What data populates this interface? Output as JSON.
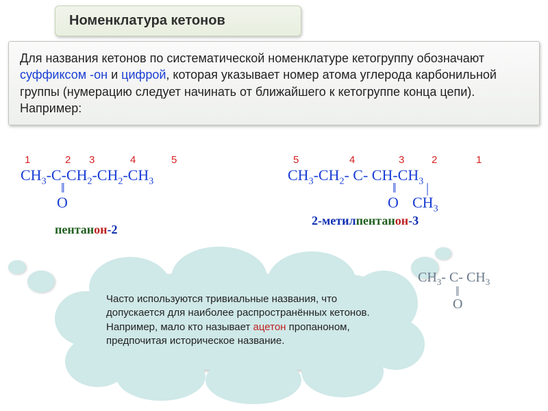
{
  "title": "Номенклатура кетонов",
  "description": {
    "part1": "Для названия кетонов по систематической номенклатуре кетогруппу обозначают ",
    "suffix": "суффиксом -он",
    "and": " и ",
    "digit": "цифрой",
    "part2": ", которая указывает номер атома углерода карбонильной группы (нумерацию следует начинать от ближайшего к кетогруппе конца цепи). Например:"
  },
  "formula1": {
    "nums": [
      "1",
      "2",
      "3",
      "4",
      "5"
    ],
    "num_positions": [
      6,
      65,
      100,
      160,
      220
    ],
    "line": "CH₃-C-CH₂-CH₂-CH₃",
    "dbond": "‖",
    "oxygen": "O",
    "name_pref": "пентан",
    "name_suf": "он",
    "name_num": "-2"
  },
  "formula2": {
    "nums": [
      "5",
      "4",
      "3",
      "2",
      "1"
    ],
    "num_positions": [
      8,
      90,
      162,
      210,
      275
    ],
    "line": "CH₃-CH₂- C- CH-CH₃",
    "dbond": "‖",
    "sbond": "|",
    "oxygen": "O",
    "methyl": "CH₃",
    "name_pref": "2-метил",
    "name_mid": "пентан",
    "name_suf": "он",
    "name_num": "-3"
  },
  "cloud": {
    "text1": "Часто используются тривиальные названия, что допускается для наиболее распространённых кетонов. Например, мало кто называет ",
    "acetone": "ацетон",
    "text2": " пропаноном, предпочитая историческое название."
  },
  "acetone_formula": {
    "line": "CH₃- C- CH₃",
    "dbond": "‖",
    "oxygen": "O"
  },
  "colors": {
    "blue": "#1a3fd4",
    "red_num": "#d62020",
    "green": "#206020",
    "red_suf": "#c02020",
    "cloud_bg": "#cfe8e8"
  }
}
